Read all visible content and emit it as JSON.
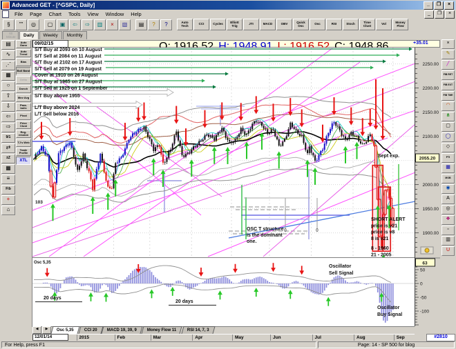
{
  "window": {
    "title": "Advanced GET - [^GSPC, Daily]",
    "controls": [
      "_",
      "❐",
      "×"
    ]
  },
  "menu": [
    "File",
    "Page",
    "Chart",
    "Tools",
    "View",
    "Window",
    "Help"
  ],
  "toolbar_icons": [
    {
      "name": "pointer-icon",
      "glyph": "§"
    },
    {
      "name": "quotes-icon",
      "glyph": "””"
    },
    {
      "name": "find-icon",
      "glyph": "◎"
    },
    {
      "sep": true
    },
    {
      "name": "new-page-icon",
      "glyph": "▢"
    },
    {
      "name": "open-layout-icon",
      "glyph": "▣",
      "color": "#006060"
    },
    {
      "name": "prev-page-icon",
      "glyph": "⇦",
      "color": "#007a7a"
    },
    {
      "name": "next-page-icon",
      "glyph": "⇨",
      "color": "#007a7a"
    },
    {
      "name": "copy-page-icon",
      "glyph": "▥",
      "color": "#007a7a"
    },
    {
      "name": "delete-page-icon",
      "glyph": "×",
      "color": "#aa0000"
    },
    {
      "name": "paste-page-icon",
      "glyph": "▧",
      "color": "#333399"
    },
    {
      "sep": true
    },
    {
      "name": "print-icon",
      "glyph": "▤"
    },
    {
      "name": "help-icon",
      "glyph": "?",
      "color": "#b08000"
    },
    {
      "name": "context-help-icon",
      "glyph": "?",
      "color": "#000080"
    }
  ],
  "toolbar_studies": [
    "Auto Tech",
    "CCI",
    "Cycles",
    "Elliott Trig",
    "JTI",
    "MACD",
    "OBV",
    "Quick Osc",
    "Osc",
    "RSI",
    "Stoch",
    "Time Clust",
    "Vol",
    "Money Flow"
  ],
  "chart_tabs": [
    {
      "label": "60 Minute",
      "state": "disabled"
    },
    {
      "label": "Daily",
      "state": "active"
    },
    {
      "label": "Weekly",
      "state": ""
    },
    {
      "label": "Monthly",
      "state": ""
    }
  ],
  "sidebar_icons": [
    {
      "name": "open-icon",
      "glyph": "▤"
    },
    {
      "name": "elliott-icon",
      "glyph": "∿"
    },
    {
      "name": "gann-icon",
      "glyph": "⋰"
    },
    {
      "name": "study-icon",
      "glyph": "▦"
    },
    {
      "name": "ellipse-icon",
      "glyph": "○"
    },
    {
      "name": "up-arrow-icon",
      "glyph": "⇧"
    },
    {
      "name": "down-arrow-icon",
      "glyph": "⇩"
    },
    {
      "name": "left-arrow-icon",
      "glyph": "⇦"
    },
    {
      "name": "right-arrow-icon",
      "glyph": "⇨"
    },
    {
      "name": "ratio-icon",
      "glyph": "9/1",
      "small": true
    },
    {
      "name": "expand-icon",
      "glyph": "⇄"
    },
    {
      "name": "zoom-z-icon",
      "glyph": "±Z",
      "small": true
    },
    {
      "name": "grid-icon",
      "glyph": "▦"
    },
    {
      "name": "lines-icon",
      "glyph": "≡"
    },
    {
      "name": "fib-icon",
      "glyph": "Fib",
      "small": true
    },
    {
      "name": "cross-icon",
      "glyph": "+",
      "color": "#cc0000"
    },
    {
      "name": "exit-icon",
      "glyph": "⌂"
    }
  ],
  "sidebar_tools": [
    {
      "label": "Auto Gann",
      "state": ""
    },
    {
      "label": "Auto Trend",
      "state": ""
    },
    {
      "label": "Bias",
      "state": ""
    },
    {
      "label": "Boll Band",
      "state": "pressed"
    },
    {
      "label": "Delta",
      "state": "disabled"
    },
    {
      "label": "Donch",
      "state": ""
    },
    {
      "label": "Mov Avg",
      "state": ""
    },
    {
      "label": "Para- bolic",
      "state": ""
    },
    {
      "label": "Pivot",
      "state": ""
    },
    {
      "label": "Price Clust",
      "state": ""
    },
    {
      "label": "Reg- ression",
      "state": ""
    },
    {
      "label": "TJ's Web",
      "state": ""
    },
    {
      "label": "Trade Profile",
      "state": ""
    },
    {
      "label": "XTL",
      "state": "active"
    }
  ],
  "right_toolbar": [
    {
      "name": "close-study-button",
      "glyph": "×"
    },
    {
      "name": "pencil-icon",
      "glyph": "✎",
      "color": "#a08000"
    },
    {
      "name": "trendline-icon",
      "glyph": "╱",
      "color": "#cc00cc"
    },
    {
      "name": "fib-retrace-button",
      "glyph": "FIB RET",
      "lbl": true
    },
    {
      "name": "fib-extension-button",
      "glyph": "FIB EXT",
      "lbl": true
    },
    {
      "name": "fib-time-button",
      "glyph": "FIB TME",
      "lbl": true
    },
    {
      "name": "gann-fan-icon",
      "glyph": "◠",
      "color": "#cc4400"
    },
    {
      "name": "pitchfork-icon",
      "glyph": "⋔",
      "color": "#008000"
    },
    {
      "name": "box-tool-icon",
      "glyph": "▢"
    },
    {
      "name": "ellipse-tool-icon",
      "glyph": "◯",
      "color": "#0000aa"
    },
    {
      "name": "rhombus-tool-icon",
      "glyph": "◇"
    },
    {
      "name": "pti-button",
      "glyph": "PTI",
      "lbl": true
    },
    {
      "name": "gann-box-icon",
      "glyph": "▦",
      "color": "#0000aa"
    },
    {
      "name": "mob-button",
      "glyph": "MOB",
      "lbl": true
    },
    {
      "name": "chart-zoom-icon",
      "glyph": "◉",
      "color": "#0044aa"
    },
    {
      "name": "text-tool-button",
      "glyph": "A"
    },
    {
      "name": "magnifier-icon",
      "glyph": "◎"
    },
    {
      "name": "palette-icon",
      "glyph": "❖",
      "color": "#aa0066"
    },
    {
      "name": "select-box-icon",
      "glyph": "▫"
    },
    {
      "name": "copy-tool-icon",
      "glyph": "▥"
    },
    {
      "name": "undo-button",
      "glyph": "U",
      "color": "#cc0000"
    }
  ],
  "quote_bar": {
    "date": "09/02/15",
    "o_label": "O:",
    "open": "1916.52",
    "h_label": "H:",
    "high": "1948.91",
    "l_label": "L:",
    "low": "1916.52",
    "c_label": "C:",
    "close": "1948.86",
    "change": "+35.01"
  },
  "price_axis": {
    "current_label": "2055.20"
  },
  "bottom_tabs": [
    {
      "label": "Osc 5,35",
      "active": true
    },
    {
      "label": "CCI 20",
      "active": false
    },
    {
      "label": "MACD 19, 39, 9",
      "active": false
    },
    {
      "label": "Money Flow 11",
      "active": false
    },
    {
      "label": "RSI 14, 7, 3",
      "active": false
    }
  ],
  "date_axis": {
    "bar_count": "#2810"
  },
  "status_bar": {
    "left": "For Help, press F1",
    "right": "Page: 14 - SP 500 for blog"
  },
  "annotations": {
    "trade_log": [
      "S/T Buy at 2093 on 10 August",
      "S/T Sell at 2084 on 11 August",
      "S/T Buy at 2102 on 17 August",
      "S/T Sell at 2079 on 19 August",
      "Cover at 1910 on 26 August",
      "S/T Buy at 1965 on 27 August",
      "S/T Sell at 1925 on 1 September"
    ],
    "st_level": "S/T Buy above 1955",
    "lt_levels": [
      "L/T Buy above 2024",
      "L/T Sell below 2016"
    ],
    "low_label": "103",
    "osc_t_note": [
      "OSC T structure",
      "is the dominant",
      "one."
    ],
    "zero_markers": [
      "0",
      "0"
    ],
    "sept_exp": "Sept exp.",
    "short_alert": [
      "SHORT ALERT",
      "price is v21",
      "price is v8",
      "8 is v21"
    ],
    "short_levels": [
      "8   - 1960",
      "21 - 2005"
    ],
    "osc_sell": [
      "Oscillator",
      "Sell Signal"
    ],
    "osc_buy": [
      "Oscillator",
      "Buy Signal"
    ],
    "twenty_days": [
      "20 days",
      "20 days"
    ],
    "osc_label": "Osc 5,35"
  },
  "chart_data": {
    "type": "candlestick",
    "symbol": "^GSPC",
    "interval": "Daily",
    "date": "09/02/15",
    "ohlc": {
      "open": 1916.52,
      "high": 1948.91,
      "low": 1916.52,
      "close": 1948.86,
      "change": 35.01
    },
    "last_price": 2055.2,
    "y_range": [
      1850,
      2285
    ],
    "y_ticks": [
      2250,
      2200,
      2150,
      2100,
      2050,
      2000,
      1950,
      1900
    ],
    "x_months": [
      [
        "12/01/14",
        0
      ],
      [
        "2015",
        22
      ],
      [
        "Feb",
        42
      ],
      [
        "Mar",
        61
      ],
      [
        "Apr",
        83
      ],
      [
        "May",
        104
      ],
      [
        "Jun",
        124
      ],
      [
        "Jul",
        146
      ],
      [
        "Aug",
        168
      ],
      [
        "Sep",
        189
      ]
    ],
    "days": 190,
    "price_anchors": [
      [
        0,
        2053
      ],
      [
        4,
        2075
      ],
      [
        7,
        2060
      ],
      [
        10,
        1972
      ],
      [
        13,
        2061
      ],
      [
        16,
        2078
      ],
      [
        19,
        2090
      ],
      [
        21,
        2058
      ],
      [
        23,
        2025
      ],
      [
        26,
        2062
      ],
      [
        29,
        2028
      ],
      [
        31,
        1992
      ],
      [
        35,
        2063
      ],
      [
        37,
        2029
      ],
      [
        39,
        1995
      ],
      [
        41,
        1995
      ],
      [
        43,
        2042
      ],
      [
        46,
        2055
      ],
      [
        50,
        2097
      ],
      [
        55,
        2110
      ],
      [
        58,
        2119
      ],
      [
        60,
        2104
      ],
      [
        63,
        2071
      ],
      [
        66,
        2080
      ],
      [
        68,
        2044
      ],
      [
        72,
        2074
      ],
      [
        75,
        2108
      ],
      [
        78,
        2061
      ],
      [
        82,
        2068
      ],
      [
        86,
        2081
      ],
      [
        88,
        2092
      ],
      [
        91,
        2106
      ],
      [
        95,
        2092
      ],
      [
        99,
        2118
      ],
      [
        103,
        2086
      ],
      [
        106,
        2089
      ],
      [
        109,
        2116
      ],
      [
        112,
        2105
      ],
      [
        115,
        2123
      ],
      [
        117,
        2130
      ],
      [
        120,
        2126
      ],
      [
        123,
        2107
      ],
      [
        126,
        2111
      ],
      [
        129,
        2080
      ],
      [
        132,
        2095
      ],
      [
        135,
        2124
      ],
      [
        138,
        2109
      ],
      [
        141,
        2102
      ],
      [
        144,
        2063
      ],
      [
        145,
        2077
      ],
      [
        148,
        2046
      ],
      [
        152,
        2077
      ],
      [
        155,
        2108
      ],
      [
        158,
        2128
      ],
      [
        161,
        2114
      ],
      [
        164,
        2093
      ],
      [
        167,
        2104
      ],
      [
        170,
        2098
      ],
      [
        173,
        2084
      ],
      [
        175,
        2091
      ],
      [
        177,
        2102
      ],
      [
        179,
        2079
      ],
      [
        180,
        2036
      ],
      [
        181,
        1971
      ],
      [
        182,
        1893
      ],
      [
        183,
        1868
      ],
      [
        184,
        1940
      ],
      [
        185,
        1988
      ],
      [
        186,
        1989
      ],
      [
        187,
        1972
      ],
      [
        188,
        1914
      ],
      [
        189,
        1949
      ]
    ],
    "candle_colors": {
      "blue": [
        [
          2,
          9
        ],
        [
          12,
          21
        ],
        [
          33,
          36
        ],
        [
          44,
          58
        ],
        [
          149,
          159
        ]
      ],
      "red": [
        [
          9,
          12
        ],
        [
          29,
          33
        ],
        [
          37,
          42
        ],
        [
          66,
          69
        ],
        [
          178,
          190
        ]
      ]
    },
    "sell_arrow_days": [
      4,
      19,
      48,
      55,
      58,
      75,
      80,
      90,
      99,
      109,
      117,
      126,
      135,
      141,
      152,
      158,
      167,
      173,
      177
    ],
    "buy_arrow_days": [
      10,
      31,
      39,
      43,
      63,
      68,
      83,
      95,
      102,
      112,
      120,
      129,
      144,
      148,
      164,
      170,
      181,
      184,
      187
    ],
    "extra_sell_arrows": [
      [
        497,
        46,
        119
      ],
      [
        507,
        59,
        134
      ]
    ],
    "entry_lines": [
      {
        "y": 2,
        "x1": 104,
        "x2": 550
      },
      {
        "y": 11,
        "x1": 104,
        "x2": 532
      },
      {
        "y": 20,
        "x1": 104,
        "x2": 512
      },
      {
        "y": 29,
        "x1": 106,
        "x2": 494
      },
      {
        "y": 38,
        "x1": 0,
        "x2": 284
      },
      {
        "y": 48,
        "x1": 0,
        "x2": 250
      },
      {
        "y": 57,
        "x1": 0,
        "x2": 266
      }
    ],
    "hollow_arrows": [
      [
        0,
        65,
        204
      ],
      [
        0,
        83,
        159
      ]
    ],
    "trend_lines": [
      [
        0,
        261,
        554,
        49
      ],
      [
        0,
        283,
        554,
        91
      ],
      [
        0,
        236,
        554,
        23
      ],
      [
        0,
        303,
        514,
        131
      ],
      [
        24,
        303,
        434,
        1
      ],
      [
        74,
        303,
        474,
        21
      ],
      [
        0,
        19,
        274,
        216
      ],
      [
        0,
        39,
        244,
        243
      ],
      [
        254,
        303,
        554,
        181
      ],
      [
        334,
        303,
        554,
        111
      ]
    ],
    "blue_segments": [
      [
        302,
        459,
        243,
        "#6f6fe6",
        1.5
      ],
      [
        306,
        399,
        249,
        "#8a8af0",
        1
      ],
      [
        0,
        62,
        136,
        "#5a5ae6",
        1.5
      ],
      [
        237,
        307,
        85,
        "#a9b2f2",
        1.2
      ],
      [
        244,
        299,
        89,
        "#a9b2f2",
        1
      ]
    ],
    "blue_diagonal": [
      284,
      276,
      554,
      223
    ],
    "lavender": {
      "verticals": [
        [
          191,
          183,
          239
        ],
        [
          272,
          83,
          113
        ],
        [
          400,
          178,
          278
        ]
      ],
      "horizontals": [
        [
          166,
          216,
          193
        ]
      ]
    },
    "cluster_dashes": [
      [
        286,
        372,
        231
      ],
      [
        294,
        384,
        235
      ],
      [
        284,
        399,
        266
      ],
      [
        290,
        394,
        270
      ]
    ],
    "green_verticals": [
      [
        303,
        199,
        271
      ],
      [
        309,
        217,
        278
      ]
    ],
    "sept_exp_line": [
      530,
      169,
      265
    ],
    "mob_boxes": [
      [
        179,
        2040,
        183,
        1862
      ],
      [
        182,
        1995,
        187,
        1862
      ]
    ],
    "osc_t": {
      "verticals": [
        [
          366,
          218,
          263
        ],
        [
          412,
          218,
          263
        ]
      ],
      "bar": [
        306,
        402,
        218
      ],
      "labels": [
        [
          364,
          267
        ],
        [
          410,
          267
        ]
      ]
    },
    "oscillator": {
      "label": "Osc 5,35",
      "fast": 5,
      "slow": 35,
      "y_ticks": [
        [
          "50",
          50
        ],
        [
          "0",
          0
        ],
        [
          "-50",
          -50
        ],
        [
          "-100",
          -100
        ]
      ],
      "current": "63",
      "sell_days": [
        7,
        55,
        88,
        106,
        126,
        141
      ],
      "buy_days": [
        11,
        30,
        38,
        62,
        73,
        98,
        117,
        135,
        155,
        183
      ]
    }
  }
}
